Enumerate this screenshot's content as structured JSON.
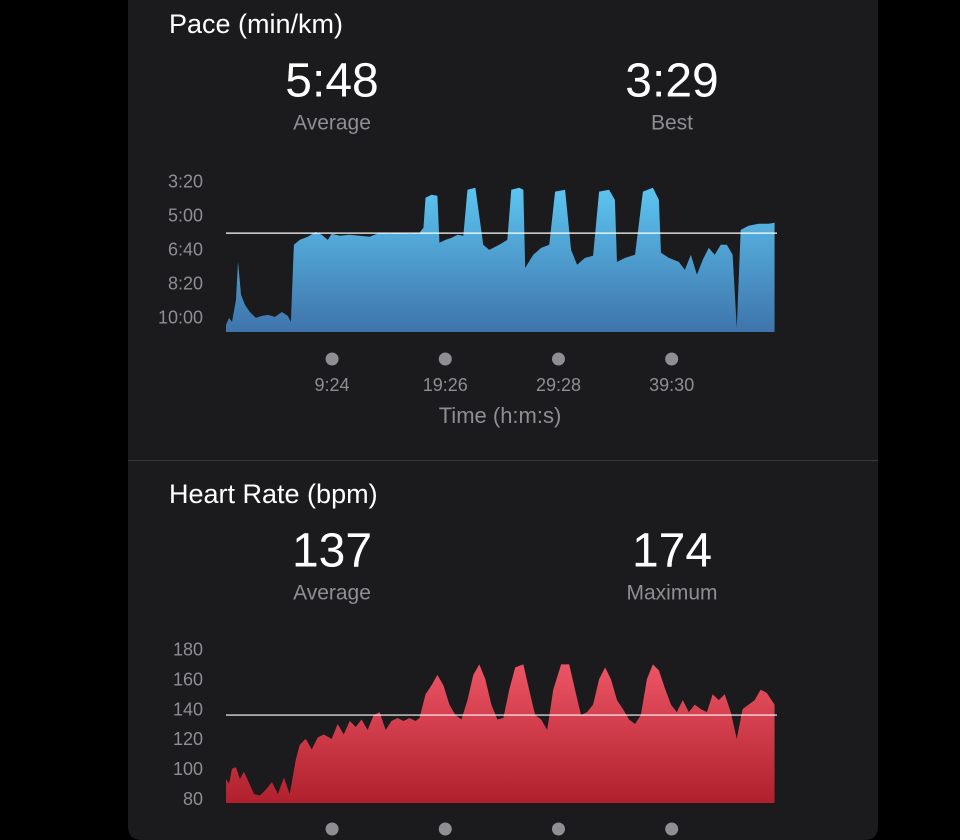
{
  "chart_data": [
    {
      "type": "area",
      "title": "Pace (min/km)",
      "stats": [
        {
          "value": 5.8,
          "label": "5:48",
          "name": "Average"
        },
        {
          "value": 3.483,
          "label": "3:29",
          "name": "Best"
        }
      ],
      "x_label": "Time (h:m:s)",
      "x": [
        0,
        16,
        32,
        53,
        64,
        80,
        101,
        127,
        159,
        191,
        223,
        260,
        297,
        329,
        345,
        361,
        392,
        435,
        477,
        509,
        541,
        562,
        605,
        658,
        711,
        764,
        817,
        870,
        923,
        976,
        1029,
        1050,
        1061,
        1093,
        1124,
        1135,
        1167,
        1199,
        1231,
        1262,
        1284,
        1326,
        1368,
        1400,
        1453,
        1496,
        1517,
        1559,
        1581,
        1591,
        1634,
        1676,
        1719,
        1750,
        1803,
        1835,
        1867,
        1909,
        1952,
        1984,
        2037,
        2068,
        2079,
        2122,
        2175,
        2217,
        2270,
        2302,
        2313,
        2355,
        2408,
        2440,
        2472,
        2504,
        2535,
        2567,
        2599,
        2631,
        2663,
        2694,
        2716,
        2737,
        2779,
        2832,
        2885,
        2917
      ],
      "values": [
        10.29,
        9.95,
        10.15,
        9.07,
        7.21,
        8.82,
        9.31,
        9.66,
        9.95,
        9.85,
        9.8,
        9.9,
        9.66,
        9.85,
        10.15,
        6.37,
        6.13,
        5.98,
        5.74,
        5.88,
        6.13,
        5.83,
        5.93,
        5.88,
        5.93,
        5.98,
        5.78,
        5.83,
        5.78,
        5.83,
        5.78,
        5.54,
        4.07,
        3.92,
        3.97,
        6.27,
        6.13,
        6.03,
        5.88,
        5.93,
        3.68,
        3.58,
        6.37,
        6.62,
        6.37,
        6.13,
        3.68,
        3.58,
        3.68,
        7.5,
        6.86,
        6.52,
        6.37,
        3.77,
        3.68,
        6.62,
        7.35,
        7.01,
        6.91,
        3.77,
        3.68,
        4.17,
        7.21,
        7.01,
        6.86,
        3.77,
        3.58,
        4.17,
        6.76,
        7.01,
        7.21,
        7.6,
        6.86,
        7.84,
        7.11,
        6.52,
        6.86,
        6.37,
        6.37,
        6.86,
        10.44,
        5.64,
        5.44,
        5.34,
        5.34,
        5.29
      ],
      "colors": [
        "#5cc4f0",
        "#3f74ab"
      ],
      "xlim": [
        0,
        2930
      ],
      "xticks": [
        {
          "value": 564,
          "label": "9:24"
        },
        {
          "value": 1166,
          "label": "19:26"
        },
        {
          "value": 1768,
          "label": "29:28"
        },
        {
          "value": 2370,
          "label": "39:30"
        }
      ],
      "ylim": [
        10.64,
        3.2
      ],
      "yticks": [
        {
          "value": 3.33,
          "label": "3:20"
        },
        {
          "value": 5,
          "label": "5:00"
        },
        {
          "value": 6.67,
          "label": "6:40"
        },
        {
          "value": 8.33,
          "label": "8:20"
        },
        {
          "value": 10,
          "label": "10:00"
        }
      ]
    },
    {
      "type": "area",
      "title": "Heart Rate (bpm)",
      "stats": [
        {
          "value": 137,
          "name": "Average"
        },
        {
          "value": 174,
          "name": "Maximum"
        }
      ],
      "x": [
        0,
        16,
        32,
        53,
        74,
        95,
        117,
        149,
        180,
        212,
        244,
        276,
        308,
        339,
        371,
        392,
        424,
        456,
        488,
        520,
        562,
        594,
        626,
        658,
        690,
        721,
        753,
        785,
        817,
        849,
        880,
        912,
        944,
        976,
        1008,
        1029,
        1061,
        1093,
        1124,
        1156,
        1188,
        1220,
        1252,
        1284,
        1315,
        1347,
        1379,
        1411,
        1443,
        1475,
        1506,
        1538,
        1581,
        1612,
        1644,
        1676,
        1708,
        1740,
        1782,
        1825,
        1856,
        1888,
        1920,
        1952,
        1984,
        2016,
        2047,
        2079,
        2111,
        2143,
        2175,
        2206,
        2238,
        2270,
        2302,
        2334,
        2366,
        2397,
        2429,
        2461,
        2493,
        2525,
        2557,
        2588,
        2620,
        2652,
        2684,
        2716,
        2747,
        2779,
        2811,
        2843,
        2875,
        2917
      ],
      "values": [
        94,
        91,
        101,
        102,
        94,
        99,
        93,
        84,
        83,
        87,
        92,
        84,
        95,
        84,
        107,
        117,
        121,
        114,
        122,
        124,
        121,
        131,
        124,
        133,
        129,
        134,
        127,
        137,
        139,
        127,
        133,
        135,
        133,
        135,
        133,
        135,
        151,
        157,
        164,
        157,
        144,
        137,
        134,
        147,
        164,
        171,
        161,
        144,
        134,
        135,
        154,
        169,
        171,
        154,
        137,
        134,
        127,
        154,
        171,
        171,
        154,
        137,
        139,
        144,
        161,
        169,
        161,
        147,
        141,
        134,
        131,
        137,
        161,
        171,
        167,
        155,
        144,
        139,
        147,
        139,
        144,
        141,
        139,
        151,
        147,
        151,
        139,
        121,
        141,
        144,
        147,
        154,
        152,
        144
      ],
      "colors": [
        "#ec5565",
        "#b0202d"
      ],
      "xlim": [
        0,
        2930
      ],
      "xticks": [
        564,
        1166,
        1768,
        2370
      ],
      "ylim": [
        78,
        182
      ],
      "yticks": [
        80,
        100,
        120,
        140,
        160,
        180
      ]
    }
  ]
}
